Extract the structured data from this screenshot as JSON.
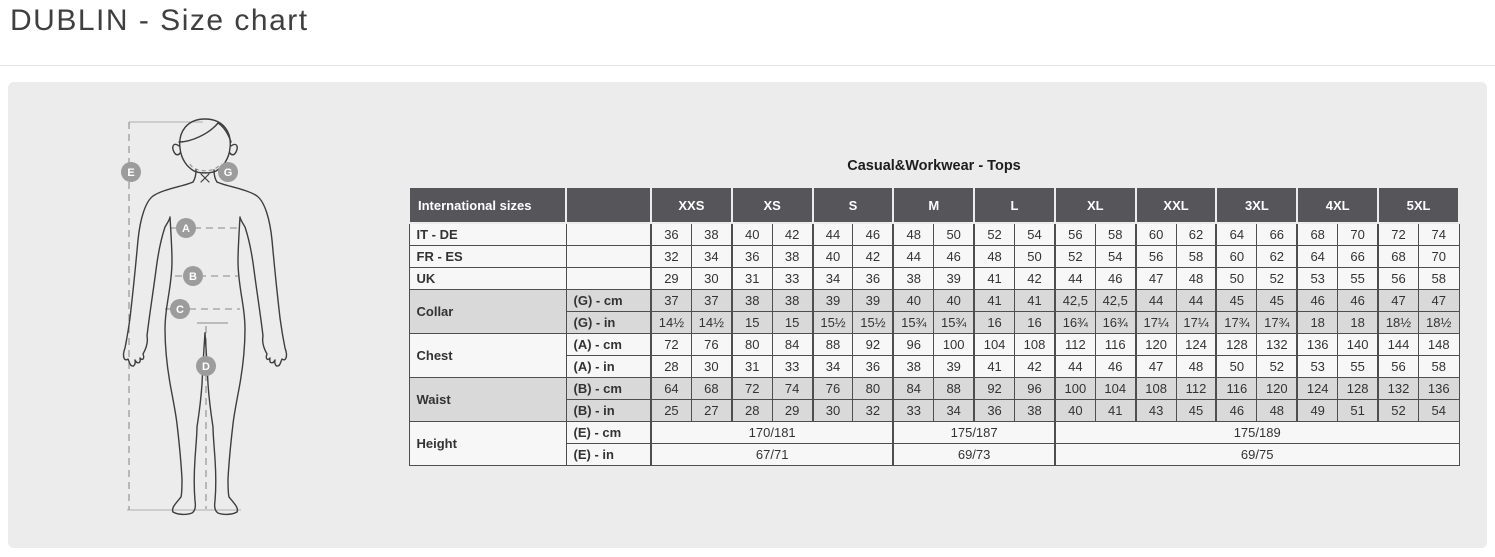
{
  "page": {
    "title": "DUBLIN - Size chart"
  },
  "figure": {
    "badges": [
      "E",
      "G",
      "A",
      "B",
      "C",
      "D"
    ]
  },
  "table": {
    "title": "Casual&Workwear - Tops",
    "corner_header": "International sizes",
    "size_headers": [
      "XXS",
      "XS",
      "S",
      "M",
      "L",
      "XL",
      "XXL",
      "3XL",
      "4XL",
      "5XL"
    ],
    "groups": [
      {
        "label": "IT - DE",
        "shaded": false,
        "rows": [
          {
            "sub": "",
            "values": [
              "36",
              "38",
              "40",
              "42",
              "44",
              "46",
              "48",
              "50",
              "52",
              "54",
              "56",
              "58",
              "60",
              "62",
              "64",
              "66",
              "68",
              "70",
              "72",
              "74"
            ]
          }
        ]
      },
      {
        "label": "FR - ES",
        "shaded": false,
        "rows": [
          {
            "sub": "",
            "values": [
              "32",
              "34",
              "36",
              "38",
              "40",
              "42",
              "44",
              "46",
              "48",
              "50",
              "52",
              "54",
              "56",
              "58",
              "60",
              "62",
              "64",
              "66",
              "68",
              "70"
            ]
          }
        ]
      },
      {
        "label": "UK",
        "shaded": false,
        "rows": [
          {
            "sub": "",
            "values": [
              "29",
              "30",
              "31",
              "33",
              "34",
              "36",
              "38",
              "39",
              "41",
              "42",
              "44",
              "46",
              "47",
              "48",
              "50",
              "52",
              "53",
              "55",
              "56",
              "58"
            ]
          }
        ]
      },
      {
        "label": "Collar",
        "shaded": true,
        "rows": [
          {
            "sub": "(G) - cm",
            "values": [
              "37",
              "37",
              "38",
              "38",
              "39",
              "39",
              "40",
              "40",
              "41",
              "41",
              "42,5",
              "42,5",
              "44",
              "44",
              "45",
              "45",
              "46",
              "46",
              "47",
              "47"
            ]
          },
          {
            "sub": "(G) - in",
            "values": [
              "14½",
              "14½",
              "15",
              "15",
              "15½",
              "15½",
              "15¾",
              "15¾",
              "16",
              "16",
              "16¾",
              "16¾",
              "17¼",
              "17¼",
              "17¾",
              "17¾",
              "18",
              "18",
              "18½",
              "18½"
            ]
          }
        ]
      },
      {
        "label": "Chest",
        "shaded": false,
        "rows": [
          {
            "sub": "(A) - cm",
            "values": [
              "72",
              "76",
              "80",
              "84",
              "88",
              "92",
              "96",
              "100",
              "104",
              "108",
              "112",
              "116",
              "120",
              "124",
              "128",
              "132",
              "136",
              "140",
              "144",
              "148"
            ]
          },
          {
            "sub": "(A) - in",
            "values": [
              "28",
              "30",
              "31",
              "33",
              "34",
              "36",
              "38",
              "39",
              "41",
              "42",
              "44",
              "46",
              "47",
              "48",
              "50",
              "52",
              "53",
              "55",
              "56",
              "58"
            ]
          }
        ]
      },
      {
        "label": "Waist",
        "shaded": true,
        "rows": [
          {
            "sub": "(B) - cm",
            "values": [
              "64",
              "68",
              "72",
              "74",
              "76",
              "80",
              "84",
              "88",
              "92",
              "96",
              "100",
              "104",
              "108",
              "112",
              "116",
              "120",
              "124",
              "128",
              "132",
              "136"
            ]
          },
          {
            "sub": "(B) - in",
            "values": [
              "25",
              "27",
              "28",
              "29",
              "30",
              "32",
              "33",
              "34",
              "36",
              "38",
              "40",
              "41",
              "43",
              "45",
              "46",
              "48",
              "49",
              "51",
              "52",
              "54"
            ]
          }
        ]
      },
      {
        "label": "Height",
        "shaded": false,
        "rows": [
          {
            "sub": "(E) - cm",
            "values": [
              "170/181",
              "175/187",
              "175/189"
            ],
            "spans": [
              6,
              4,
              10
            ]
          },
          {
            "sub": "(E) - in",
            "values": [
              "67/71",
              "69/73",
              "69/75"
            ],
            "spans": [
              6,
              4,
              10
            ]
          }
        ]
      }
    ]
  },
  "colors": {
    "header_bg": "#55555a",
    "row_bg": "#f7f7f7",
    "shaded_row_bg": "#d9d9d9",
    "panel_bg": "#ececec",
    "cell_border": "#4e4e4e",
    "badge_bg": "#9c9c9c"
  }
}
